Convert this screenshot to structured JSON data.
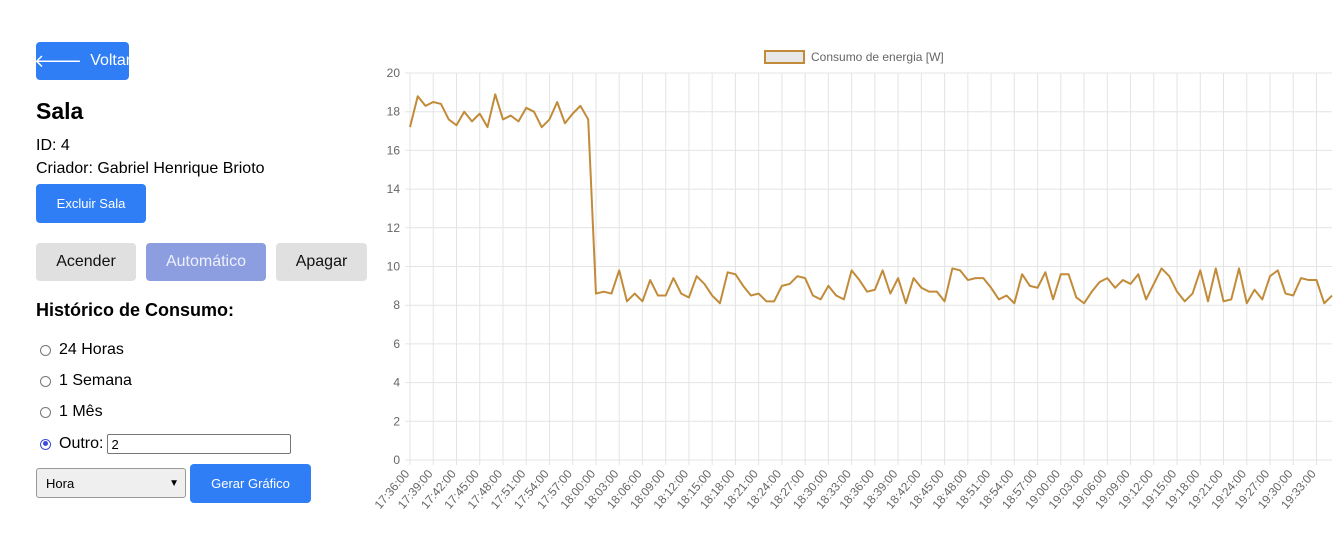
{
  "nav": {
    "back_label": "Voltar",
    "back_icon": "arrow-left-icon"
  },
  "room": {
    "name": "Sala",
    "id_text": "ID: 4",
    "creator_text": "Criador: Gabriel Henrique Brioto",
    "delete_label": "Excluir Sala"
  },
  "controls": {
    "on_label": "Acender",
    "auto_label": "Automático",
    "off_label": "Apagar",
    "active": "auto"
  },
  "history": {
    "title": "Histórico de Consumo:",
    "options": [
      "24 Horas",
      "1 Semana",
      "1 Mês",
      "Outro:"
    ],
    "selected": "Outro:",
    "other_value": "2",
    "unit_selected": "Hora",
    "generate_label": "Gerar Gráfico"
  },
  "colors": {
    "primary": "#2f7ef5",
    "auto_button": "#8c9de0",
    "series": "#c28b3a",
    "grey_button": "#e0e0e0"
  },
  "chart_data": {
    "type": "line",
    "legend": "top-center",
    "grid": true,
    "ylim": [
      0,
      20
    ],
    "y_ticks": [
      "0",
      "2",
      "4",
      "6",
      "8",
      "10",
      "12",
      "14",
      "16",
      "18",
      "20"
    ],
    "x_tick_labels": [
      "17:36:00",
      "17:39:00",
      "17:42:00",
      "17:45:00",
      "17:48:00",
      "17:51:00",
      "17:54:00",
      "17:57:00",
      "18:00:00",
      "18:03:00",
      "18:06:00",
      "18:09:00",
      "18:12:00",
      "18:15:00",
      "18:18:00",
      "18:21:00",
      "18:24:00",
      "18:27:00",
      "18:30:00",
      "18:33:00",
      "18:36:00",
      "18:39:00",
      "18:42:00",
      "18:45:00",
      "18:48:00",
      "18:51:00",
      "18:54:00",
      "18:57:00",
      "19:00:00",
      "19:03:00",
      "19:06:00",
      "19:09:00",
      "19:12:00",
      "19:15:00",
      "19:18:00",
      "19:21:00",
      "19:24:00",
      "19:27:00",
      "19:30:00",
      "19:33:00"
    ],
    "series": [
      {
        "name": "Consumo de energia [W]",
        "values": [
          17.2,
          18.8,
          18.3,
          18.5,
          18.4,
          17.6,
          17.3,
          18.0,
          17.5,
          17.9,
          17.2,
          18.9,
          17.6,
          17.8,
          17.5,
          18.2,
          18.0,
          17.2,
          17.6,
          18.5,
          17.4,
          17.9,
          18.3,
          17.6,
          8.6,
          8.7,
          8.6,
          9.8,
          8.2,
          8.6,
          8.2,
          9.3,
          8.5,
          8.5,
          9.4,
          8.6,
          8.4,
          9.5,
          9.1,
          8.5,
          8.1,
          9.7,
          9.6,
          9.0,
          8.5,
          8.6,
          8.2,
          8.2,
          9.0,
          9.1,
          9.5,
          9.4,
          8.5,
          8.3,
          9.0,
          8.5,
          8.3,
          9.8,
          9.3,
          8.7,
          8.8,
          9.8,
          8.6,
          9.4,
          8.1,
          9.4,
          8.9,
          8.7,
          8.7,
          8.2,
          9.9,
          9.8,
          9.3,
          9.4,
          9.4,
          8.9,
          8.3,
          8.5,
          8.1,
          9.6,
          9.0,
          8.9,
          9.7,
          8.3,
          9.6,
          9.6,
          8.4,
          8.1,
          8.7,
          9.2,
          9.4,
          8.9,
          9.3,
          9.1,
          9.6,
          8.3,
          9.1,
          9.9,
          9.5,
          8.7,
          8.2,
          8.6,
          9.8,
          8.2,
          9.9,
          8.2,
          8.3,
          9.9,
          8.1,
          8.8,
          8.3,
          9.5,
          9.8,
          8.6,
          8.5,
          9.4,
          9.3,
          9.3,
          8.1,
          8.5
        ]
      }
    ]
  }
}
